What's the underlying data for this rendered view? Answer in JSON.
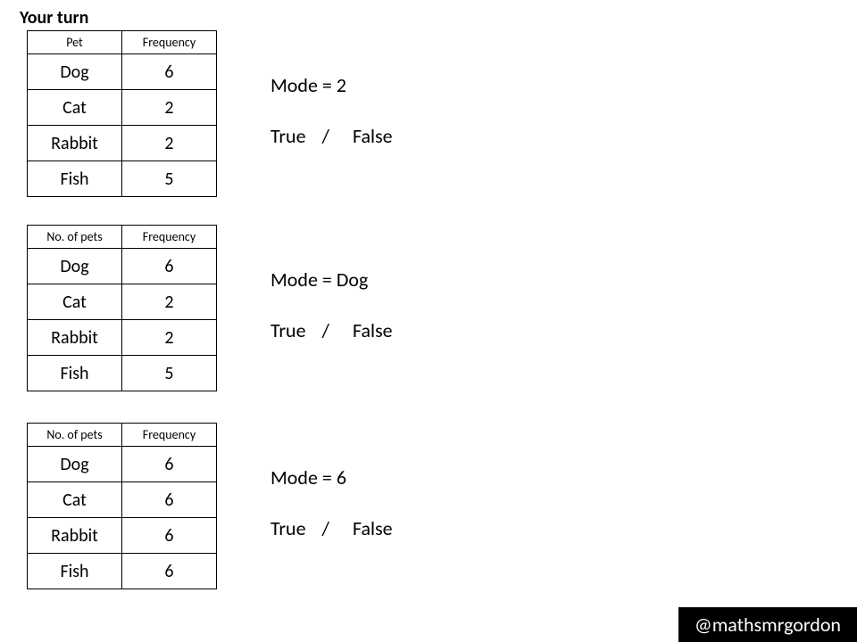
{
  "title": "Your turn",
  "handle": "@mathsmrgordon",
  "colors": {
    "background": "#ffffff",
    "text": "#000000",
    "border": "#000000",
    "handle_bg": "#000000",
    "handle_text": "#ffffff"
  },
  "questions": [
    {
      "table": {
        "columns": [
          "Pet",
          "Frequency"
        ],
        "rows": [
          [
            "Dog",
            "6"
          ],
          [
            "Cat",
            "2"
          ],
          [
            "Rabbit",
            "2"
          ],
          [
            "Fish",
            "5"
          ]
        ]
      },
      "mode_statement": "Mode = 2",
      "true_label": "True",
      "false_label": "False",
      "separator": "/"
    },
    {
      "table": {
        "columns": [
          "No. of pets",
          "Frequency"
        ],
        "rows": [
          [
            "Dog",
            "6"
          ],
          [
            "Cat",
            "2"
          ],
          [
            "Rabbit",
            "2"
          ],
          [
            "Fish",
            "5"
          ]
        ]
      },
      "mode_statement": "Mode = Dog",
      "true_label": "True",
      "false_label": "False",
      "separator": "/"
    },
    {
      "table": {
        "columns": [
          "No. of pets",
          "Frequency"
        ],
        "rows": [
          [
            "Dog",
            "6"
          ],
          [
            "Cat",
            "6"
          ],
          [
            "Rabbit",
            "6"
          ],
          [
            "Fish",
            "6"
          ]
        ]
      },
      "mode_statement": "Mode = 6",
      "true_label": "True",
      "false_label": "False",
      "separator": "/"
    }
  ]
}
